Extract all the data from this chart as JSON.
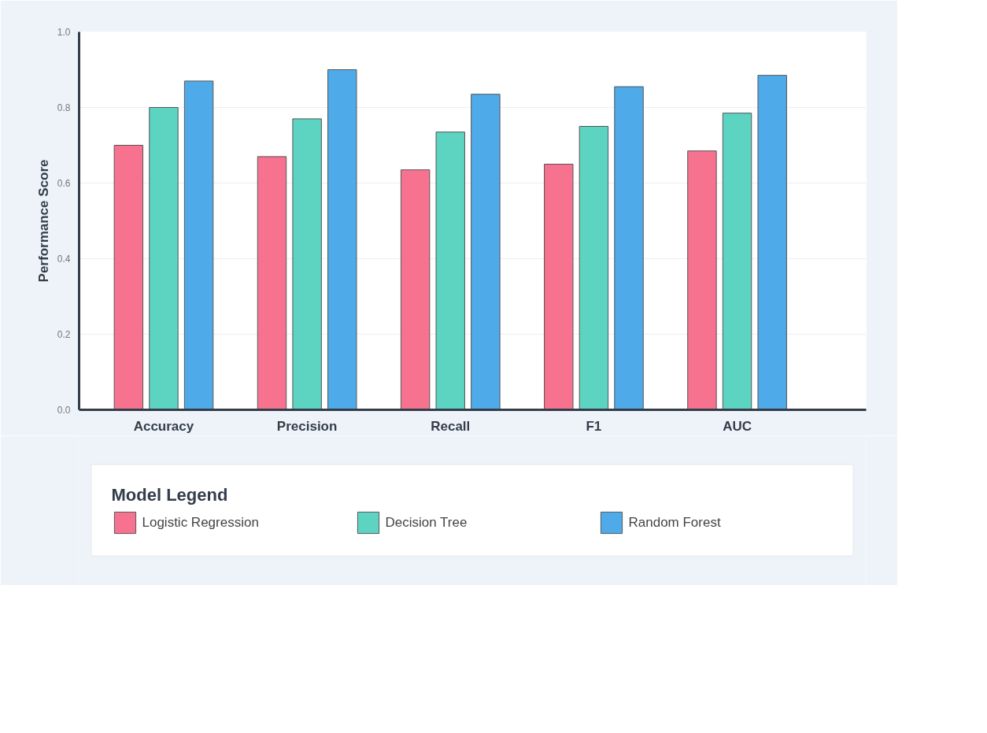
{
  "chart_data": {
    "type": "bar",
    "ylabel": "Performance Score",
    "legend_title": "Model Legend",
    "categories": [
      "Accuracy",
      "Precision",
      "Recall",
      "F1",
      "AUC"
    ],
    "series": [
      {
        "name": "Logistic Regression",
        "color": "#f7728f",
        "values": [
          0.7,
          0.67,
          0.635,
          0.65,
          0.685
        ]
      },
      {
        "name": "Decision Tree",
        "color": "#5dd3c2",
        "values": [
          0.8,
          0.77,
          0.735,
          0.75,
          0.785
        ]
      },
      {
        "name": "Random Forest",
        "color": "#4eaae8",
        "values": [
          0.87,
          0.9,
          0.835,
          0.855,
          0.885
        ]
      }
    ],
    "ylim": [
      0,
      1
    ],
    "yticks": [
      {
        "value": 0,
        "label": "0.0"
      },
      0.2,
      0.4,
      0.6,
      0.8,
      {
        "value": 1,
        "label": "1.0"
      }
    ],
    "grid": "y",
    "legend": "bottom"
  }
}
